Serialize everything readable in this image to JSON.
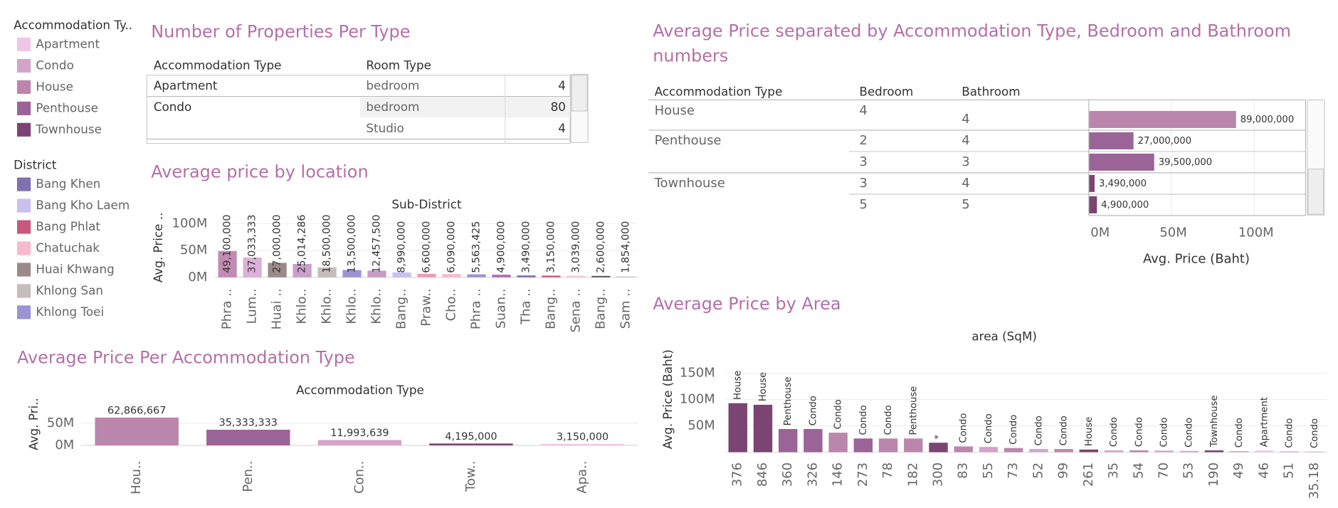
{
  "legends": [
    {
      "title": "Accommodation Ty..",
      "items": [
        {
          "name": "Apartment",
          "color": "#efc6e6"
        },
        {
          "name": "Condo",
          "color": "#d4a3c9"
        },
        {
          "name": "House",
          "color": "#bb86ac"
        },
        {
          "name": "Penthouse",
          "color": "#9a6497"
        },
        {
          "name": "Townhouse",
          "color": "#7b4472"
        }
      ]
    },
    {
      "title": "District",
      "items": [
        {
          "name": "Bang Khen",
          "color": "#7d72ae"
        },
        {
          "name": "Bang Kho Laem",
          "color": "#c9c0ef"
        },
        {
          "name": "Bang Phlat",
          "color": "#c9587f"
        },
        {
          "name": "Chatuchak",
          "color": "#f9b9cc"
        },
        {
          "name": "Huai Khwang",
          "color": "#9a8a8a"
        },
        {
          "name": "Khlong San",
          "color": "#c5bcbc"
        },
        {
          "name": "Khlong Toei",
          "color": "#9b93d4"
        }
      ]
    }
  ],
  "property_table": {
    "title": "Number of Properties Per Type",
    "columns": [
      "Accommodation Type",
      "Room Type"
    ],
    "groups": [
      {
        "type": "Apartment",
        "rows": [
          {
            "room": "bedroom",
            "count": 4
          }
        ]
      },
      {
        "type": "Condo",
        "rows": [
          {
            "room": "bedroom",
            "count": 80
          },
          {
            "room": "Studio",
            "count": 4
          }
        ]
      }
    ]
  },
  "chart_data": [
    {
      "type": "bar",
      "title": "Average price by location",
      "header": "Sub-District",
      "ylabel": "Avg. Price ..",
      "categories": [
        "Phra ..",
        "Lum..",
        "Huai ..",
        "Khlo..",
        "Khlo..",
        "Khlo..",
        "Khlo..",
        "Bang..",
        "Praw..",
        "Cho..",
        "Phra ..",
        "Suan..",
        "Tha ..",
        "Bang..",
        "Sena ..",
        "Bang..",
        "Sam .."
      ],
      "values": [
        49100000,
        37033333,
        27000000,
        25014286,
        18500000,
        13500000,
        12457500,
        8990000,
        6600000,
        6090000,
        5563425,
        4900000,
        3490000,
        3150000,
        3039000,
        2600000,
        1854000
      ],
      "value_labels": [
        "49,100,000",
        "37,033,333",
        "27,000,000",
        "25,014,286",
        "18,500,000",
        "13,500,000",
        "12,457,500",
        "8,990,000",
        "6,600,000",
        "6,090,000",
        "5,563,425",
        "4,900,000",
        "3,490,000",
        "3,150,000",
        "3,039,000",
        "2,600,000",
        "1,854,000"
      ],
      "colors": [
        "#c28bb5",
        "#dcb0d8",
        "#9a8a8a",
        "#c9a0c8",
        "#c5bcbc",
        "#9b93d4",
        "#c79bc4",
        "#c9c0ef",
        "#f19bb0",
        "#f9b9cc",
        "#9b93d4",
        "#b46cb3",
        "#7d72ae",
        "#c9587f",
        "#f3c8d8",
        "#555555",
        "#cccccc"
      ],
      "ylim": [
        0,
        110000000
      ],
      "yticks": [
        {
          "value": 0,
          "label": "0M"
        },
        {
          "value": 50000000,
          "label": "50M"
        },
        {
          "value": 100000000,
          "label": "100M"
        }
      ],
      "grid": true
    },
    {
      "type": "bar",
      "title": "Average Price Per Accommodation Type",
      "header": "Accommodation Type",
      "ylabel": "Avg. Pri..",
      "categories": [
        "Hou..",
        "Pen..",
        "Con..",
        "Tow..",
        "Apa.."
      ],
      "values": [
        62866667,
        35333333,
        11993639,
        4195000,
        3150000
      ],
      "value_labels": [
        "62,866,667",
        "35,333,333",
        "11,993,639",
        "4,195,000",
        "3,150,000"
      ],
      "colors": [
        "#bb86ac",
        "#9a6497",
        "#d4a3c9",
        "#7b4472",
        "#efc6e6"
      ],
      "ylim": [
        0,
        110000000
      ],
      "yticks": [
        {
          "value": 0,
          "label": "0M"
        },
        {
          "value": 50000000,
          "label": "50M"
        }
      ],
      "grid": true
    },
    {
      "type": "bar",
      "orientation": "horizontal",
      "title": "Average Price separated by Accommodation Type, Bedroom and Bathroom numbers",
      "columns": [
        "Accommodation Type",
        "Bedroom",
        "Bathroom"
      ],
      "rows": [
        {
          "accommodation": "House",
          "bedroom": 4,
          "bathroom": 4
        },
        {
          "accommodation": "Penthouse",
          "bedroom": 2,
          "bathroom": 4
        },
        {
          "accommodation": null,
          "bedroom": 3,
          "bathroom": 3
        },
        {
          "accommodation": "Townhouse",
          "bedroom": 3,
          "bathroom": 4
        },
        {
          "accommodation": null,
          "bedroom": 5,
          "bathroom": 5
        }
      ],
      "values": [
        89000000,
        27000000,
        39500000,
        3490000,
        4900000
      ],
      "value_labels": [
        "89,000,000",
        "27,000,000",
        "39,500,000",
        "3,490,000",
        "4,900,000"
      ],
      "colors": [
        "#bb86ac",
        "#9a6497",
        "#9a6497",
        "#7b4472",
        "#7b4472"
      ],
      "xlabel": "Avg. Price (Baht)",
      "xlim": [
        0,
        131000000
      ],
      "xticks": [
        {
          "value": 0,
          "label": "0M"
        },
        {
          "value": 50000000,
          "label": "50M"
        },
        {
          "value": 100000000,
          "label": "100M"
        }
      ],
      "grid": true
    },
    {
      "type": "bar",
      "title": "Average Price by Area",
      "header": "area (SqM)",
      "ylabel": "Avg. Price (Baht)",
      "categories": [
        "376",
        "846",
        "360",
        "326",
        "146",
        "273",
        "78",
        "182",
        "300",
        "83",
        "55",
        "73",
        "52",
        "99",
        "261",
        "35",
        "54",
        "70",
        "53",
        "190",
        "49",
        "46",
        "51",
        "35.18"
      ],
      "labels": [
        "House",
        "House",
        "Penthouse",
        "Condo",
        "Condo",
        "Condo",
        "Condo",
        "Penthouse",
        "*",
        "Condo",
        "Condo",
        "Condo",
        "Condo",
        "Condo",
        "House",
        "Condo",
        "Condo",
        "Condo",
        "Condo",
        "Townhouse",
        "Condo",
        "Apartment",
        "Condo",
        "Condo"
      ],
      "values": [
        93000000,
        90000000,
        44000000,
        44000000,
        37000000,
        26000000,
        26000000,
        26000000,
        18000000,
        11000000,
        10000000,
        8000000,
        6000000,
        6000000,
        5000000,
        3500000,
        3500000,
        3000000,
        2500000,
        3490000,
        2000000,
        3150000,
        1500000,
        1000000
      ],
      "colors": [
        "#7b4472",
        "#7b4472",
        "#9a6497",
        "#9a6497",
        "#bb86ac",
        "#9a6497",
        "#bb86ac",
        "#bb86ac",
        "#7b4472",
        "#bb86ac",
        "#d4a3c9",
        "#bb86ac",
        "#d4a3c9",
        "#bb86ac",
        "#7b4472",
        "#d4a3c9",
        "#bb86ac",
        "#d4a3c9",
        "#d4a3c9",
        "#7b4472",
        "#d4a3c9",
        "#efc6e6",
        "#d4a3c9",
        "#d4a3c9"
      ],
      "ylim": [
        0,
        170000000
      ],
      "yticks": [
        {
          "value": 50000000,
          "label": "50M"
        },
        {
          "value": 100000000,
          "label": "100M"
        },
        {
          "value": 150000000,
          "label": "150M"
        }
      ],
      "grid": true
    }
  ]
}
